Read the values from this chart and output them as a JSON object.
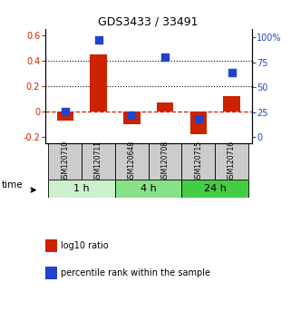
{
  "title": "GDS3433 / 33491",
  "samples": [
    "GSM120710",
    "GSM120711",
    "GSM120648",
    "GSM120708",
    "GSM120715",
    "GSM120716"
  ],
  "log10_ratio": [
    -0.07,
    0.45,
    -0.1,
    0.07,
    -0.175,
    0.12
  ],
  "percentile_rank": [
    26,
    97,
    22,
    80,
    18,
    65
  ],
  "time_groups": [
    {
      "label": "1 h",
      "start": 0,
      "end": 2,
      "color": "#ccf0cc"
    },
    {
      "label": "4 h",
      "start": 2,
      "end": 4,
      "color": "#88e088"
    },
    {
      "label": "24 h",
      "start": 4,
      "end": 6,
      "color": "#44cc44"
    }
  ],
  "ylim_left": [
    -0.25,
    0.65
  ],
  "ylim_right": [
    -6.25,
    108.3
  ],
  "yticks_left": [
    -0.2,
    0.0,
    0.2,
    0.4,
    0.6
  ],
  "ytick_labels_left": [
    "-0.2",
    "0",
    "0.2",
    "0.4",
    "0.6"
  ],
  "yticks_right": [
    0,
    25,
    50,
    75,
    100
  ],
  "ytick_labels_right": [
    "0",
    "25",
    "50",
    "75",
    "100%"
  ],
  "bar_color": "#cc2200",
  "dot_color": "#2244cc",
  "hline_color": "#cc2200",
  "dotted_line_color": "black",
  "dotted_lines_at": [
    0.2,
    0.4
  ],
  "bar_width": 0.5,
  "dot_size": 28,
  "sample_box_color": "#cccccc",
  "legend_items": [
    {
      "color": "#cc2200",
      "label": "log10 ratio"
    },
    {
      "color": "#2244cc",
      "label": "percentile rank within the sample"
    }
  ]
}
